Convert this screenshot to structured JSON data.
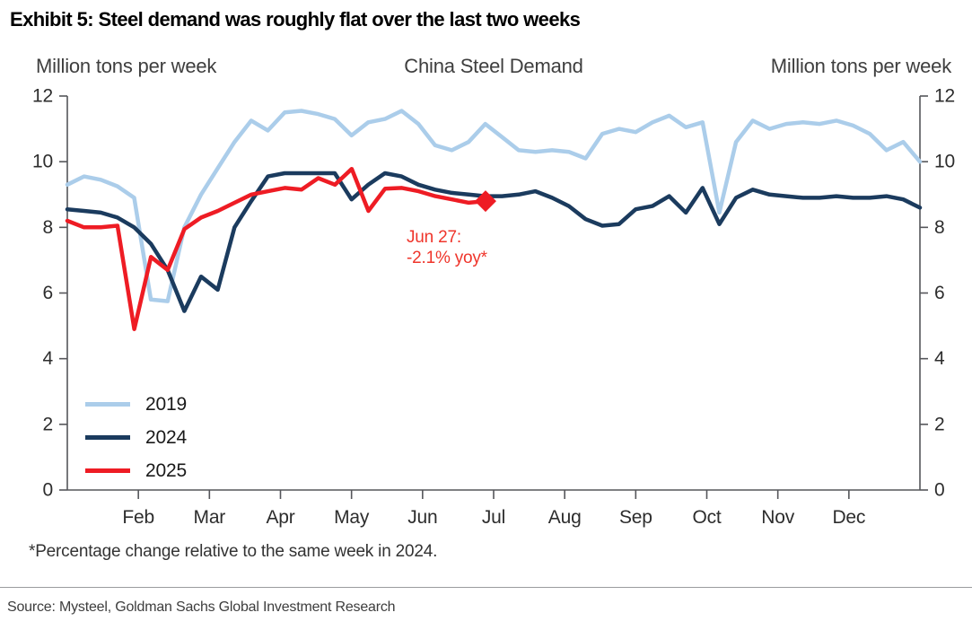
{
  "title": "Exhibit 5: Steel demand was roughly flat over the last two weeks",
  "footnote": "*Percentage change relative to the same week in 2024.",
  "source": "Source: Mysteel, Goldman Sachs Global Investment Research",
  "colors": {
    "series_2019": "#ABCDEA",
    "series_2024": "#1B3B5E",
    "series_2025": "#EE1C24",
    "annotation": "#EF352B",
    "axis": "#55565A",
    "divider": "#9A9C9E"
  },
  "chart_data": {
    "type": "line",
    "title": "China Steel Demand",
    "ylabel_left": "Million tons per week",
    "ylabel_right": "Million tons per week",
    "ylim": [
      0,
      12
    ],
    "yticks": [
      0,
      2,
      4,
      6,
      8,
      10,
      12
    ],
    "xticklabels": [
      "Feb",
      "Mar",
      "Apr",
      "May",
      "Jun",
      "Jul",
      "Aug",
      "Sep",
      "Oct",
      "Nov",
      "Dec"
    ],
    "grid": false,
    "legend_position": "lower-left",
    "units": "million tons per week",
    "frequency": "weekly",
    "annotation": {
      "line1": "Jun 27:",
      "line2": "-2.1% yoy*",
      "color": "#EF352B",
      "anchor_series": "2025",
      "anchor_value": 8.8
    },
    "series": [
      {
        "name": "2019",
        "color": "#ABCDEA",
        "x_span": [
          0,
          1
        ],
        "values": [
          9.3,
          9.55,
          9.45,
          9.25,
          8.9,
          5.8,
          5.75,
          8.0,
          9.0,
          9.8,
          10.6,
          11.25,
          10.95,
          11.5,
          11.55,
          11.45,
          11.3,
          10.8,
          11.2,
          11.3,
          11.55,
          11.15,
          10.5,
          10.35,
          10.6,
          11.15,
          10.75,
          10.35,
          10.3,
          10.35,
          10.3,
          10.1,
          10.85,
          11.0,
          10.9,
          11.2,
          11.4,
          11.05,
          11.2,
          8.45,
          10.6,
          11.25,
          11.0,
          11.15,
          11.2,
          11.15,
          11.25,
          11.1,
          10.85,
          10.35,
          10.6,
          10.0
        ]
      },
      {
        "name": "2024",
        "color": "#1B3B5E",
        "x_span": [
          0,
          1
        ],
        "values": [
          8.55,
          8.5,
          8.45,
          8.3,
          8.0,
          7.5,
          6.7,
          5.45,
          6.5,
          6.1,
          8.0,
          8.8,
          9.55,
          9.65,
          9.65,
          9.65,
          9.65,
          8.85,
          9.3,
          9.65,
          9.55,
          9.3,
          9.15,
          9.05,
          9.0,
          8.95,
          8.95,
          9.0,
          9.1,
          8.9,
          8.65,
          8.25,
          8.05,
          8.1,
          8.55,
          8.65,
          8.95,
          8.45,
          9.2,
          8.1,
          8.9,
          9.15,
          9.0,
          8.95,
          8.9,
          8.9,
          8.95,
          8.9,
          8.9,
          8.95,
          8.85,
          8.6
        ]
      },
      {
        "name": "2025",
        "color": "#EE1C24",
        "x_span": [
          0,
          0.4905
        ],
        "end_marker": "diamond",
        "values": [
          8.2,
          8.0,
          8.0,
          8.05,
          4.9,
          7.1,
          6.7,
          7.95,
          8.3,
          8.5,
          8.75,
          9.0,
          9.1,
          9.2,
          9.15,
          9.5,
          9.3,
          9.78,
          8.5,
          9.18,
          9.2,
          9.1,
          8.95,
          8.85,
          8.75,
          8.8
        ]
      }
    ]
  }
}
